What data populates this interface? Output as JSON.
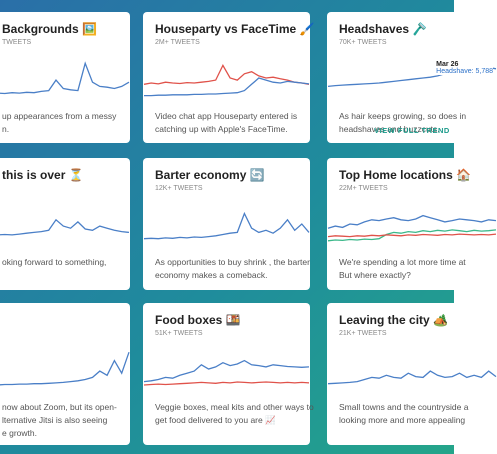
{
  "cards": [
    {
      "title": "Backgrounds 🖼️",
      "tweets": "TWEETS",
      "description": [
        "up appearances from a messy",
        "n."
      ],
      "lines": [
        {
          "color": "#4a7fc7",
          "values": [
            10,
            12,
            11,
            13,
            12,
            14,
            13,
            15,
            14,
            16,
            15,
            18,
            20,
            45,
            25,
            22,
            20,
            85,
            40,
            30,
            28,
            25,
            30,
            40
          ]
        }
      ]
    },
    {
      "title": "Houseparty vs FaceTime 🖌️",
      "tweets": "2M+ TWEETS",
      "description": [
        "Video chat app Houseparty entered is",
        "catching up with Apple's FaceTime."
      ],
      "lines": [
        {
          "color": "#e0524a",
          "values": [
            35,
            38,
            36,
            40,
            38,
            37,
            39,
            38,
            40,
            42,
            45,
            80,
            50,
            45,
            60,
            65,
            55,
            50,
            52,
            48,
            45,
            40,
            38,
            35
          ]
        },
        {
          "color": "#4a7fc7",
          "values": [
            8,
            8,
            9,
            9,
            10,
            10,
            10,
            11,
            11,
            12,
            12,
            13,
            14,
            15,
            20,
            35,
            50,
            45,
            40,
            38,
            42,
            40,
            38,
            36
          ]
        }
      ]
    },
    {
      "title": "Headshaves 🪒",
      "tweets": "70K+ TWEETS",
      "description": [
        "As hair keeps growing, so does in",
        "headshaves and buzzcuts."
      ],
      "tooltip": {
        "date": "Mar 26",
        "label": "Headshave: 5,788"
      },
      "link": "VIEW FULL TREND",
      "lines": [
        {
          "color": "#4a7fc7",
          "values": [
            30,
            32,
            33,
            34,
            35,
            36,
            37,
            38,
            40,
            42,
            44,
            46,
            48,
            50,
            52,
            55,
            60,
            62,
            65,
            68,
            70,
            60,
            75,
            72
          ]
        }
      ]
    },
    {
      "title": "this is over ⏳",
      "description": [
        "oking forward to something,"
      ],
      "lines": [
        {
          "color": "#4a7fc7",
          "values": [
            20,
            22,
            21,
            23,
            22,
            24,
            25,
            24,
            26,
            28,
            30,
            32,
            35,
            60,
            45,
            40,
            55,
            38,
            35,
            45,
            40,
            35,
            32,
            30
          ]
        }
      ]
    },
    {
      "title": "Barter economy 🔄",
      "tweets": "12K+ TWEETS",
      "description": [
        "As opportunities to buy shrink , the barter",
        "economy makes a comeback."
      ],
      "lines": [
        {
          "color": "#4a7fc7",
          "values": [
            15,
            16,
            15,
            17,
            16,
            18,
            17,
            19,
            18,
            20,
            22,
            25,
            28,
            30,
            75,
            40,
            30,
            35,
            28,
            40,
            60,
            35,
            50,
            30
          ]
        }
      ]
    },
    {
      "title": "Top Home locations 🏠",
      "tweets": "22M+ TWEETS",
      "description": [
        "We're spending a lot more time at",
        "But where exactly?"
      ],
      "lines": [
        {
          "color": "#4a7fc7",
          "values": [
            40,
            45,
            42,
            50,
            48,
            55,
            60,
            58,
            62,
            65,
            60,
            58,
            62,
            70,
            65,
            60,
            55,
            58,
            62,
            60,
            58,
            55,
            60,
            58
          ]
        },
        {
          "color": "#3cb88a",
          "values": [
            10,
            12,
            11,
            13,
            12,
            14,
            13,
            15,
            25,
            30,
            28,
            32,
            30,
            34,
            32,
            35,
            33,
            36,
            34,
            32,
            35,
            33,
            34,
            36
          ]
        },
        {
          "color": "#e0524a",
          "values": [
            20,
            22,
            21,
            20,
            22,
            21,
            23,
            22,
            24,
            23,
            22,
            24,
            23,
            25,
            24,
            23,
            25,
            24,
            26,
            25,
            24,
            25,
            24,
            26
          ]
        }
      ]
    },
    {
      "description": [
        "now about Zoom, but its open-",
        "lternative Jitsi is also seeing",
        "e growth."
      ],
      "lines": [
        {
          "color": "#4a7fc7",
          "values": [
            10,
            10,
            11,
            11,
            12,
            12,
            13,
            13,
            14,
            14,
            15,
            15,
            16,
            17,
            18,
            20,
            22,
            25,
            30,
            45,
            35,
            70,
            40,
            90
          ]
        }
      ]
    },
    {
      "title": "Food boxes 🍱",
      "tweets": "51K+ TWEETS",
      "description": [
        "Veggie boxes, meal kits and other ways to",
        "get food delivered to you are 📈"
      ],
      "lines": [
        {
          "color": "#4a7fc7",
          "values": [
            20,
            22,
            25,
            30,
            28,
            35,
            40,
            45,
            60,
            50,
            55,
            65,
            58,
            62,
            70,
            60,
            58,
            55,
            60,
            58,
            56,
            55,
            54,
            55
          ]
        },
        {
          "color": "#e0524a",
          "values": [
            12,
            13,
            14,
            13,
            14,
            15,
            16,
            17,
            18,
            17,
            16,
            18,
            17,
            19,
            18,
            17,
            18,
            19,
            18,
            17,
            18,
            17,
            18,
            17
          ]
        }
      ]
    },
    {
      "title": "Leaving the city 🏕️",
      "tweets": "21K+ TWEETS",
      "description": [
        "Small towns and the countryside a",
        "looking more and more appealing"
      ],
      "lines": [
        {
          "color": "#4a7fc7",
          "values": [
            15,
            16,
            17,
            18,
            20,
            25,
            30,
            28,
            35,
            30,
            28,
            40,
            32,
            30,
            45,
            35,
            30,
            32,
            40,
            30,
            35,
            30,
            45,
            32
          ]
        }
      ]
    }
  ]
}
